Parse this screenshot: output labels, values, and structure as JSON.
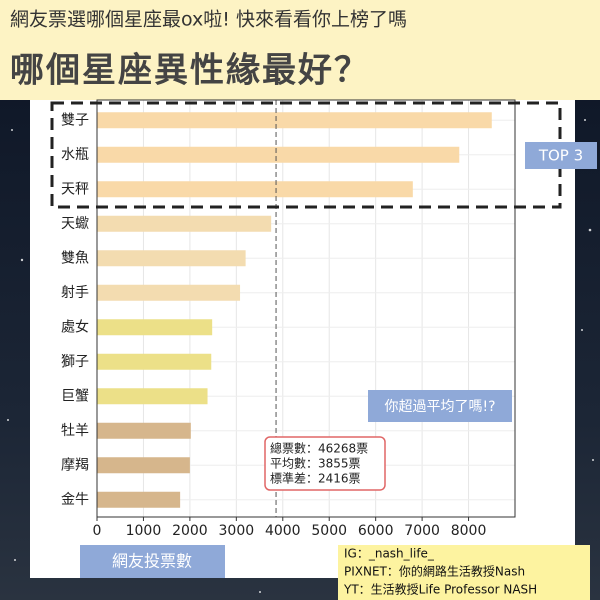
{
  "chart_data": {
    "type": "hbar",
    "headline": "網友票選哪個星座最ox啦! 快來看看你上榜了嗎",
    "title": "哪個星座異性緣最好？",
    "xlabel": "網友投票數",
    "categories": [
      "雙子",
      "水瓶",
      "天秤",
      "天蠍",
      "雙魚",
      "射手",
      "處女",
      "獅子",
      "巨蟹",
      "牡羊",
      "摩羯",
      "金牛"
    ],
    "values": [
      8500,
      7800,
      6800,
      3750,
      3200,
      3080,
      2480,
      2460,
      2380,
      2020,
      2000,
      1790
    ],
    "colors": [
      "#f9d9a8",
      "#f9d9a8",
      "#f9d9a8",
      "#f3dcb0",
      "#f3dcb0",
      "#f3dcb0",
      "#ece088",
      "#ece088",
      "#ece088",
      "#d6b68c",
      "#d6b68c",
      "#d6b68c"
    ],
    "xlim": [
      0,
      9000
    ],
    "xticks": [
      0,
      1000,
      2000,
      3000,
      4000,
      5000,
      6000,
      7000,
      8000
    ],
    "grid": true,
    "mean_line": 3855,
    "top_label": "TOP 3",
    "callout": "你超過平均了嗎!?",
    "stats": [
      "總票數：46268票",
      "平均數：3855票",
      "標準差：2416票"
    ],
    "credits": [
      "IG：_nash_life_",
      "PIXNET：你的網路生活教授Nash",
      "YT：生活教授Life Professor NASH"
    ]
  }
}
